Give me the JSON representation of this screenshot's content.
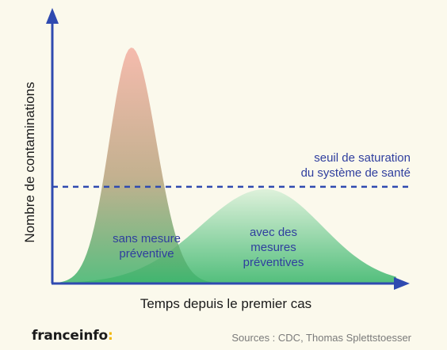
{
  "chart_data": {
    "type": "area",
    "xlabel": "Temps depuis le premier cas",
    "ylabel": "Nombre de contaminations",
    "series": [
      {
        "label_lines": [
          "sans mesure",
          "préventive"
        ],
        "peak_x": 0.23,
        "peak_y": 1.0,
        "color_top": "#f4b0a2",
        "color_bottom": "#3db46d"
      },
      {
        "label_lines": [
          "avec des",
          "mesures",
          "préventives"
        ],
        "peak_x": 0.62,
        "peak_y": 0.4,
        "color_top": "#dbf0d9",
        "color_bottom": "#40b870"
      }
    ],
    "threshold": {
      "y": 0.41,
      "label_lines": [
        "seuil de saturation",
        "du système de santé"
      ],
      "color": "#2f4ab0"
    }
  },
  "footer": {
    "brand_name": "franceinfo",
    "brand_suffix": ":",
    "sources": "Sources : CDC, Thomas Splettstoesser"
  },
  "colors": {
    "axis": "#2f4ab0",
    "background": "#fbf9ec",
    "brand_accent": "#f2b705"
  }
}
